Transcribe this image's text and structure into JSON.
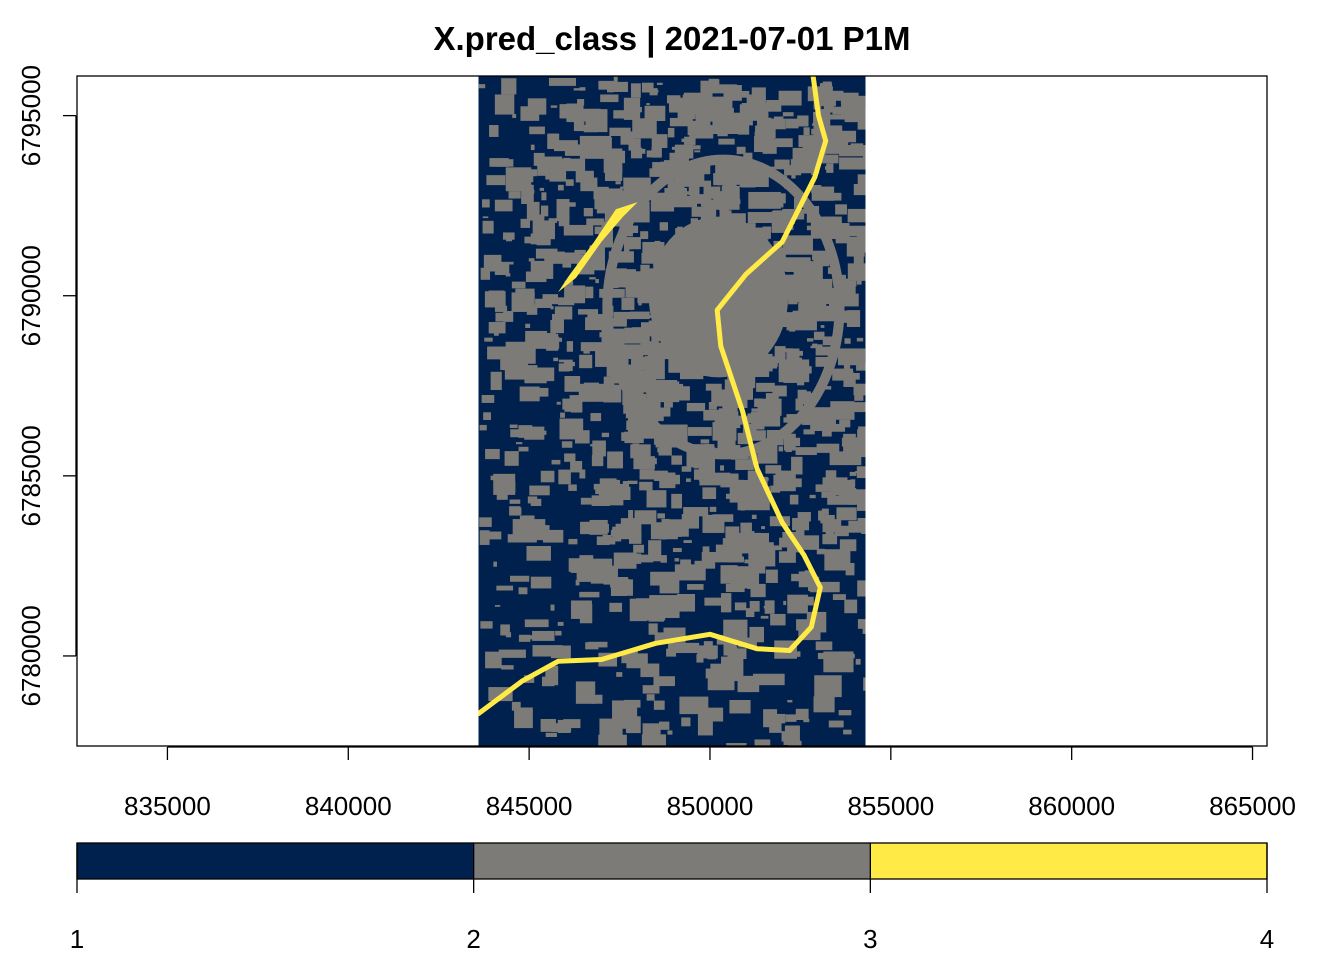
{
  "title": "X.pred_class | 2021-07-01 P1M",
  "x_axis": {
    "range": [
      832500,
      865400
    ],
    "ticks": [
      835000,
      840000,
      845000,
      850000,
      855000,
      860000,
      865000
    ],
    "tick_labels": [
      "835000",
      "840000",
      "845000",
      "850000",
      "855000",
      "860000",
      "865000"
    ]
  },
  "y_axis": {
    "range": [
      6777500,
      6796100
    ],
    "ticks": [
      6780000,
      6785000,
      6790000,
      6795000
    ],
    "tick_labels": [
      "6780000",
      "6785000",
      "6790000",
      "6795000"
    ]
  },
  "raster": {
    "extent": {
      "xmin": 843600,
      "xmax": 854300,
      "ymin": 6777500,
      "ymax": 6796100
    },
    "background_class": "1",
    "river_path": [
      [
        843600,
        6778400
      ],
      [
        844800,
        6779300
      ],
      [
        845800,
        6779850
      ],
      [
        847000,
        6779900
      ],
      [
        848500,
        6780350
      ],
      [
        850000,
        6780600
      ],
      [
        851300,
        6780200
      ],
      [
        852200,
        6780150
      ],
      [
        852800,
        6780800
      ],
      [
        853050,
        6781900
      ],
      [
        852600,
        6782800
      ],
      [
        852000,
        6783700
      ],
      [
        851300,
        6785200
      ],
      [
        850900,
        6786800
      ],
      [
        850300,
        6788600
      ],
      [
        850200,
        6789600
      ],
      [
        851000,
        6790600
      ],
      [
        852000,
        6791500
      ],
      [
        852900,
        6793300
      ],
      [
        853200,
        6794300
      ],
      [
        853000,
        6795000
      ],
      [
        852850,
        6796100
      ]
    ],
    "lake": [
      [
        845800,
        6790100
      ],
      [
        846100,
        6790550
      ],
      [
        846800,
        6791500
      ],
      [
        847400,
        6792400
      ],
      [
        848000,
        6792600
      ],
      [
        847600,
        6792200
      ],
      [
        847000,
        6791500
      ],
      [
        846300,
        6790500
      ]
    ]
  },
  "legend": {
    "colors": [
      "#00204D",
      "#7C7B78",
      "#FFEA46"
    ],
    "labels": [
      "1",
      "2",
      "3",
      "4"
    ]
  }
}
